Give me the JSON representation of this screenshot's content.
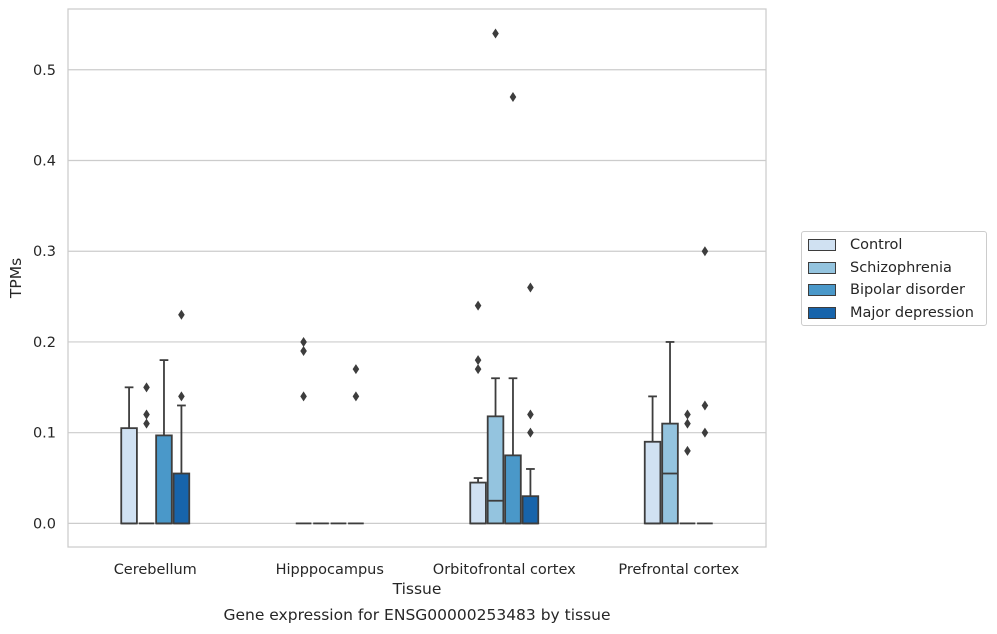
{
  "chart_data": {
    "type": "box",
    "xlabel": "Tissue",
    "ylabel": "TPMs",
    "caption": "Gene expression for ENSG00000253483 by tissue",
    "ylim": [
      -0.026,
      0.567
    ],
    "yticks": [
      0.0,
      0.1,
      0.2,
      0.3,
      0.4,
      0.5
    ],
    "ytick_labels": [
      "0.0",
      "0.1",
      "0.2",
      "0.3",
      "0.4",
      "0.5"
    ],
    "grid": true,
    "legend_position": "right",
    "categories": [
      "Cerebellum",
      "Hipppocampus",
      "Orbitofrontal cortex",
      "Prefrontal cortex"
    ],
    "series": [
      {
        "name": "Control",
        "color": "#d0e1f2",
        "boxes": [
          {
            "q1": 0.0,
            "median": 0.0,
            "q3": 0.105,
            "whisker_low": 0.0,
            "whisker_high": 0.15,
            "outliers": []
          },
          {
            "q1": 0.0,
            "median": 0.0,
            "q3": 0.0,
            "whisker_low": 0.0,
            "whisker_high": 0.0,
            "outliers": [
              0.14,
              0.19,
              0.2
            ]
          },
          {
            "q1": 0.0,
            "median": 0.0,
            "q3": 0.045,
            "whisker_low": 0.0,
            "whisker_high": 0.05,
            "outliers": [
              0.17,
              0.18,
              0.24
            ]
          },
          {
            "q1": 0.0,
            "median": 0.0,
            "q3": 0.09,
            "whisker_low": 0.0,
            "whisker_high": 0.14,
            "outliers": []
          }
        ]
      },
      {
        "name": "Schizophrenia",
        "color": "#94c4df",
        "boxes": [
          {
            "q1": 0.0,
            "median": 0.0,
            "q3": 0.0,
            "whisker_low": 0.0,
            "whisker_high": 0.0,
            "outliers": [
              0.11,
              0.12,
              0.15
            ]
          },
          {
            "q1": 0.0,
            "median": 0.0,
            "q3": 0.0,
            "whisker_low": 0.0,
            "whisker_high": 0.0,
            "outliers": []
          },
          {
            "q1": 0.0,
            "median": 0.025,
            "q3": 0.118,
            "whisker_low": 0.0,
            "whisker_high": 0.16,
            "outliers": [
              0.54
            ]
          },
          {
            "q1": 0.0,
            "median": 0.055,
            "q3": 0.11,
            "whisker_low": 0.0,
            "whisker_high": 0.2,
            "outliers": []
          }
        ]
      },
      {
        "name": "Bipolar disorder",
        "color": "#4a98c9",
        "boxes": [
          {
            "q1": 0.0,
            "median": 0.0,
            "q3": 0.097,
            "whisker_low": 0.0,
            "whisker_high": 0.18,
            "outliers": []
          },
          {
            "q1": 0.0,
            "median": 0.0,
            "q3": 0.0,
            "whisker_low": 0.0,
            "whisker_high": 0.0,
            "outliers": []
          },
          {
            "q1": 0.0,
            "median": 0.0,
            "q3": 0.075,
            "whisker_low": 0.0,
            "whisker_high": 0.16,
            "outliers": [
              0.47
            ]
          },
          {
            "q1": 0.0,
            "median": 0.0,
            "q3": 0.0,
            "whisker_low": 0.0,
            "whisker_high": 0.0,
            "outliers": [
              0.08,
              0.11,
              0.12
            ]
          }
        ]
      },
      {
        "name": "Major depression",
        "color": "#1764ab",
        "boxes": [
          {
            "q1": 0.0,
            "median": 0.0,
            "q3": 0.055,
            "whisker_low": 0.0,
            "whisker_high": 0.13,
            "outliers": [
              0.14,
              0.23
            ]
          },
          {
            "q1": 0.0,
            "median": 0.0,
            "q3": 0.0,
            "whisker_low": 0.0,
            "whisker_high": 0.0,
            "outliers": [
              0.14,
              0.17
            ]
          },
          {
            "q1": 0.0,
            "median": 0.0,
            "q3": 0.03,
            "whisker_low": 0.0,
            "whisker_high": 0.06,
            "outliers": [
              0.1,
              0.12,
              0.26
            ]
          },
          {
            "q1": 0.0,
            "median": 0.0,
            "q3": 0.0,
            "whisker_low": 0.0,
            "whisker_high": 0.0,
            "outliers": [
              0.1,
              0.13,
              0.3
            ]
          }
        ]
      }
    ]
  }
}
